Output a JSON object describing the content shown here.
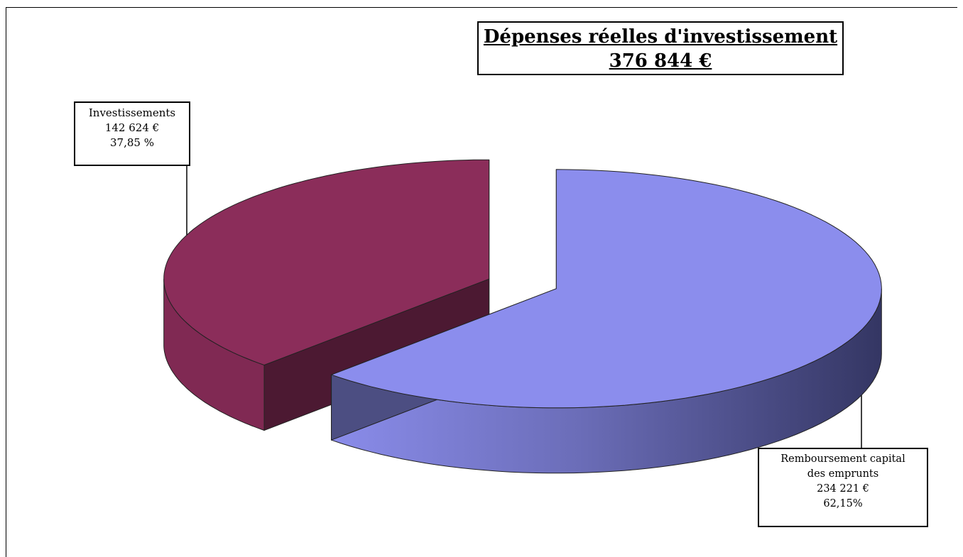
{
  "chart_data": {
    "type": "pie",
    "style": "3d-exploded",
    "title": "Dépenses réelles d'investissement",
    "subtitle": "376 844 €",
    "slices": [
      {
        "label": "Investissements",
        "value_text": "142 624  €",
        "percent_text": "37,85 %",
        "value": 142624,
        "percent": 37.85,
        "color": "#8b2d5a"
      },
      {
        "label_line1": "Remboursement capital",
        "label_line2": "des emprunts",
        "value_text": "234 221  €",
        "percent_text": "62,15%",
        "value": 234221,
        "percent": 62.15,
        "color": "#8b8ded"
      }
    ],
    "legend": "none"
  }
}
